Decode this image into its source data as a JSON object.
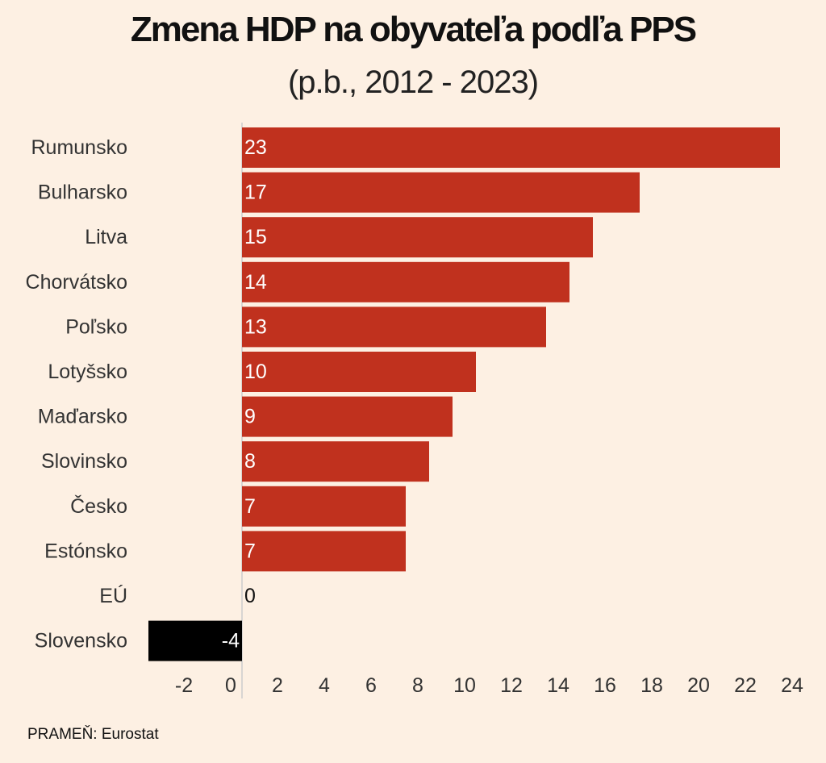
{
  "chart_data": {
    "type": "bar",
    "orientation": "horizontal",
    "title": "Zmena HDP na obyvateľa podľa PPS",
    "subtitle": "(p.b., 2012 - 2023)",
    "categories": [
      "Rumunsko",
      "Bulharsko",
      "Litva",
      "Chorvátsko",
      "Poľsko",
      "Lotyšsko",
      "Maďarsko",
      "Slovinsko",
      "Česko",
      "Estónsko",
      "EÚ",
      "Slovensko"
    ],
    "values": [
      23,
      17,
      15,
      14,
      13,
      10,
      9,
      8,
      7,
      7,
      0,
      -4
    ],
    "data_labels": [
      "23",
      "17",
      "15",
      "14",
      "13",
      "10",
      "9",
      "8",
      "7",
      "7",
      "0",
      "-4"
    ],
    "xticks": [
      -2,
      0,
      2,
      4,
      6,
      8,
      10,
      12,
      14,
      16,
      18,
      20,
      22,
      24
    ],
    "xtick_labels": [
      "-2",
      "0",
      "2",
      "4",
      "6",
      "8",
      "10",
      "12",
      "14",
      "16",
      "18",
      "20",
      "22",
      "24"
    ],
    "xlim": [
      -4,
      23.4
    ],
    "xlabel": "",
    "ylabel": "",
    "grid": false,
    "legend": "none",
    "colors": {
      "positive": "#c0311e",
      "negative": "#000000",
      "background": "#fdf0e3",
      "axis": "#cccccc"
    }
  },
  "source": "PRAMEŇ: Eurostat"
}
